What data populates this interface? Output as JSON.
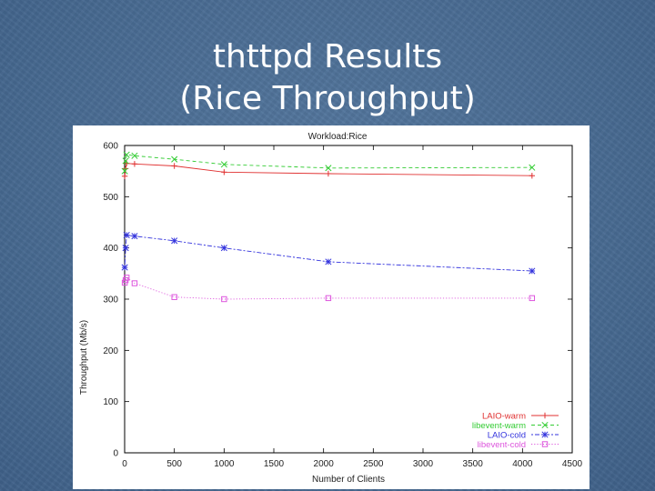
{
  "slide": {
    "title_line1": "thttpd Results",
    "title_line2": "(Rice Throughput)"
  },
  "chart_data": {
    "type": "line",
    "title": "Workload:Rice",
    "xlabel": "Number of Clients",
    "ylabel": "Throughput (Mb/s)",
    "xlim": [
      0,
      4500
    ],
    "ylim": [
      0,
      600
    ],
    "xticks": [
      0,
      500,
      1000,
      1500,
      2000,
      2500,
      3000,
      3500,
      4000,
      4500
    ],
    "yticks": [
      0,
      100,
      200,
      300,
      400,
      500,
      600
    ],
    "grid": false,
    "legend_position": "bottom-right",
    "series": [
      {
        "name": "LAIO-warm",
        "color": "#e03030",
        "dash": "solid",
        "marker": "plus",
        "x": [
          1,
          10,
          20,
          100,
          500,
          1000,
          2048,
          4096
        ],
        "y": [
          540,
          555,
          565,
          564,
          560,
          548,
          545,
          541
        ]
      },
      {
        "name": "libevent-warm",
        "color": "#33cc33",
        "dash": "dashed",
        "marker": "cross",
        "x": [
          1,
          10,
          20,
          100,
          500,
          1000,
          2048,
          4096
        ],
        "y": [
          550,
          570,
          582,
          580,
          573,
          563,
          556,
          557
        ]
      },
      {
        "name": "LAIO-cold",
        "color": "#3333dd",
        "dash": "dotted-dash",
        "marker": "star",
        "x": [
          1,
          10,
          20,
          100,
          500,
          1000,
          2048,
          4096
        ],
        "y": [
          362,
          400,
          425,
          423,
          414,
          400,
          373,
          355
        ]
      },
      {
        "name": "libevent-cold",
        "color": "#dd55dd",
        "dash": "dotted",
        "marker": "square",
        "x": [
          1,
          10,
          20,
          100,
          500,
          1000,
          2048,
          4096
        ],
        "y": [
          332,
          337,
          342,
          331,
          304,
          300,
          302,
          302
        ]
      }
    ]
  }
}
